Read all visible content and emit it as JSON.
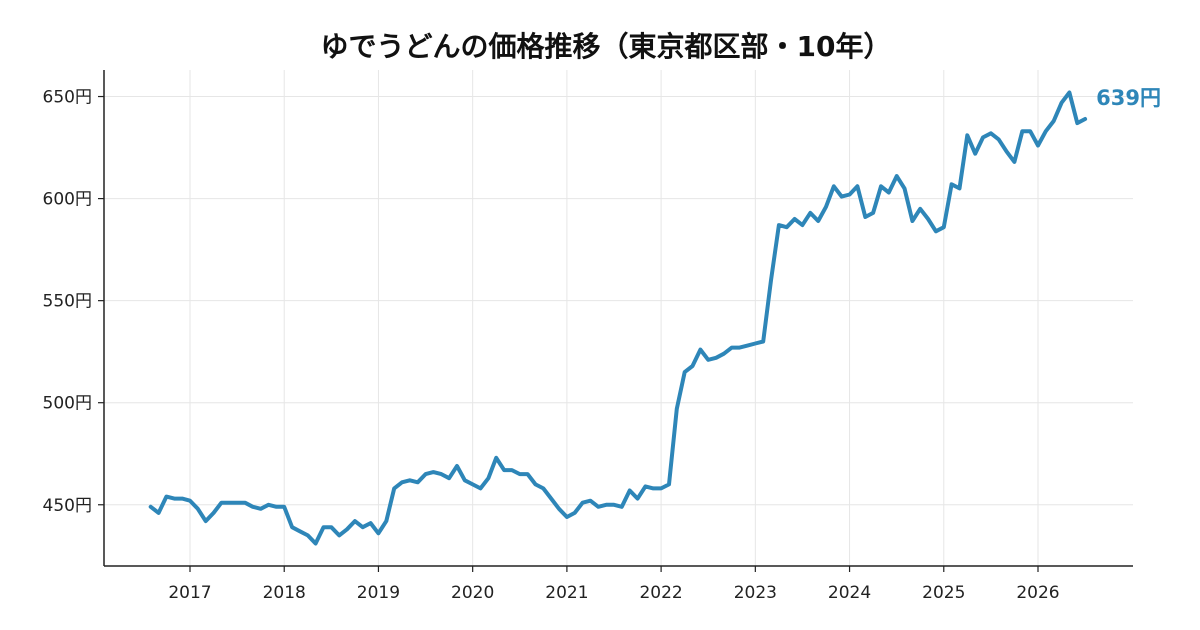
{
  "chart_data": {
    "type": "line",
    "title": "ゆでうどんの価格推移（東京都区部・10年）",
    "xlabel": "",
    "ylabel": "",
    "ylim": [
      420,
      663
    ],
    "y_ticks": [
      "450円",
      "500円",
      "550円",
      "600円",
      "650円"
    ],
    "y_tick_values": [
      450,
      500,
      550,
      600,
      650
    ],
    "x_ticks": [
      "2017",
      "2018",
      "2019",
      "2020",
      "2021",
      "2022",
      "2023",
      "2024",
      "2025",
      "2026"
    ],
    "x_tick_values": [
      2017.0,
      2018.0,
      2019.0,
      2020.0,
      2021.0,
      2022.0,
      2023.0,
      2024.0,
      2025.0,
      2026.0
    ],
    "grid": true,
    "color": "#2e86b8",
    "end_label": "639円",
    "series": [
      {
        "x": [
          2016.5833,
          2016.6667,
          2016.75,
          2016.8333,
          2016.9167,
          2017.0,
          2017.0833,
          2017.1667,
          2017.25,
          2017.3333,
          2017.4167,
          2017.5,
          2017.5833,
          2017.6667,
          2017.75,
          2017.8333,
          2017.9167,
          2018.0,
          2018.0833,
          2018.1667,
          2018.25,
          2018.3333,
          2018.4167,
          2018.5,
          2018.5833,
          2018.6667,
          2018.75,
          2018.8333,
          2018.9167,
          2019.0,
          2019.0833,
          2019.1667,
          2019.25,
          2019.3333,
          2019.4167,
          2019.5,
          2019.5833,
          2019.6667,
          2019.75,
          2019.8333,
          2019.9167,
          2020.0,
          2020.0833,
          2020.1667,
          2020.25,
          2020.3333,
          2020.4167,
          2020.5,
          2020.5833,
          2020.6667,
          2020.75,
          2020.8333,
          2020.9167,
          2021.0,
          2021.0833,
          2021.1667,
          2021.25,
          2021.3333,
          2021.4167,
          2021.5,
          2021.5833,
          2021.6667,
          2021.75,
          2021.8333,
          2021.9167,
          2022.0,
          2022.0833,
          2022.1667,
          2022.25,
          2022.3333,
          2022.4167,
          2022.5,
          2022.5833,
          2022.6667,
          2022.75,
          2022.8333,
          2022.9167,
          2023.0,
          2023.0833,
          2023.1667,
          2023.25,
          2023.3333,
          2023.4167,
          2023.5,
          2023.5833,
          2023.6667,
          2023.75,
          2023.8333,
          2023.9167,
          2024.0,
          2024.0833,
          2024.1667,
          2024.25,
          2024.3333,
          2024.4167,
          2024.5,
          2024.5833,
          2024.6667,
          2024.75,
          2024.8333,
          2024.9167,
          2025.0,
          2025.0833,
          2025.1667,
          2025.25,
          2025.3333,
          2025.4167,
          2025.5,
          2025.5833,
          2025.6667,
          2025.75,
          2025.8333,
          2025.9167,
          2026.0,
          2026.0833,
          2026.1667,
          2026.25,
          2026.3333,
          2026.4167,
          2026.5
        ],
        "values": [
          449,
          446,
          454,
          453,
          453,
          452,
          448,
          442,
          446,
          451,
          451,
          451,
          451,
          449,
          448,
          450,
          449,
          449,
          439,
          437,
          435,
          431,
          439,
          439,
          435,
          438,
          442,
          439,
          441,
          436,
          442,
          458,
          461,
          462,
          461,
          465,
          466,
          465,
          463,
          469,
          462,
          460,
          458,
          463,
          473,
          467,
          467,
          465,
          465,
          460,
          458,
          453,
          448,
          444,
          446,
          451,
          452,
          449,
          450,
          450,
          449,
          457,
          453,
          459,
          458,
          458,
          460,
          497,
          515,
          518,
          526,
          521,
          522,
          524,
          527,
          527,
          528,
          529,
          530,
          560,
          587,
          586,
          590,
          587,
          593,
          589,
          596,
          606,
          601,
          602,
          606,
          591,
          593,
          606,
          603,
          611,
          605,
          589,
          595,
          590,
          584,
          586,
          607,
          605,
          631,
          622,
          630,
          632,
          629,
          623,
          618,
          633,
          633,
          626,
          633,
          638,
          647,
          652,
          637,
          639
        ]
      }
    ]
  }
}
